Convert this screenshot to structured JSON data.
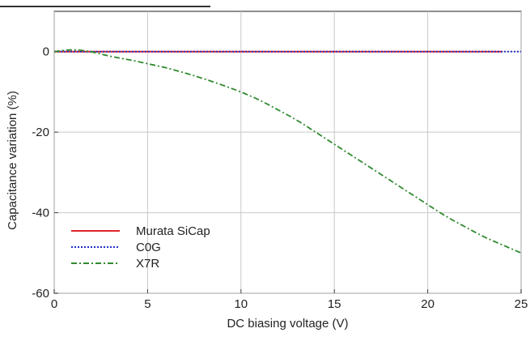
{
  "chart_data": {
    "type": "line",
    "title": "",
    "xlabel": "DC biasing voltage (V)",
    "ylabel": "Capacitance variation (%)",
    "xlim": [
      0,
      25
    ],
    "ylim": [
      -60,
      10
    ],
    "x_ticks": [
      0,
      5,
      10,
      15,
      20,
      25
    ],
    "y_ticks": [
      0,
      -20,
      -40,
      -60
    ],
    "grid": true,
    "legend_position": "bottom-left",
    "series": [
      {
        "name": "Murata SiCap",
        "color": "#e0242a",
        "style": "solid",
        "x": [
          0,
          24
        ],
        "y": [
          0,
          0
        ]
      },
      {
        "name": "C0G",
        "color": "#1f2fc8",
        "style": "dotted",
        "x": [
          0,
          25
        ],
        "y": [
          0,
          0
        ]
      },
      {
        "name": "X7R",
        "color": "#2f8a2f",
        "style": "dashdot",
        "x": [
          0,
          1,
          2,
          3,
          4,
          5,
          6,
          7,
          8,
          9,
          10,
          11,
          12,
          13,
          14,
          15,
          16,
          17,
          18,
          19,
          20,
          21,
          22,
          23,
          24,
          25
        ],
        "y": [
          0,
          0.6,
          0,
          -1.2,
          -2.0,
          -3.0,
          -4.0,
          -5.3,
          -6.7,
          -8.3,
          -10.0,
          -12.0,
          -14.5,
          -17.0,
          -20.0,
          -23.0,
          -26.0,
          -29.0,
          -32.0,
          -35.0,
          -38.0,
          -41.0,
          -43.5,
          -46.0,
          -48.0,
          -50.0
        ]
      }
    ]
  }
}
